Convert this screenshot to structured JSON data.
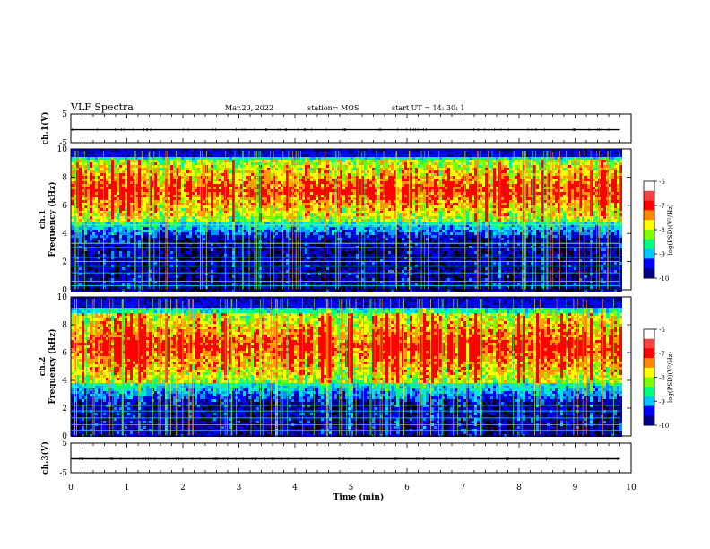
{
  "header": {
    "title": "VLF Spectra",
    "date": "Mar.20, 2022",
    "station": "station= MOS",
    "start": "start  UT =   14: 30: 1"
  },
  "chart_data": [
    {
      "type": "line",
      "panel": "ch1-waveform",
      "ylabel": "ch.1(V)",
      "ylim": [
        -5,
        5
      ],
      "yticks": [
        "5",
        "-5"
      ],
      "series": [
        {
          "values": [
            -0.5
          ]
        }
      ]
    },
    {
      "type": "heatmap",
      "panel": "ch1-spectrogram",
      "ylabel": "ch.1\nFrequency (kHz)",
      "ylabel_lines": [
        "ch.1",
        "Frequency (kHz)"
      ],
      "ylim": [
        0,
        10
      ],
      "yticks": [
        "0",
        "2",
        "4",
        "6",
        "8",
        "10"
      ],
      "band_low_khz": 5.0,
      "band_high_khz": 9.3,
      "noise_lines_khz": [
        0.3,
        0.6,
        1.2,
        1.7,
        2.0,
        2.3,
        3.0,
        3.3,
        4.6
      ],
      "colorbar": {
        "label": "log(PSD)(V²/Hz)",
        "range": [
          -10,
          -6
        ],
        "ticks": [
          "-6",
          "-7",
          "-8",
          "-9",
          "-10"
        ]
      }
    },
    {
      "type": "heatmap",
      "panel": "ch2-spectrogram",
      "ylabel": "ch.2\nFrequency (kHz)",
      "ylabel_lines": [
        "ch.2",
        "Frequency (kHz)"
      ],
      "ylim": [
        0,
        10
      ],
      "yticks": [
        "0",
        "2",
        "4",
        "6",
        "8",
        "10"
      ],
      "band_low_khz": 4.0,
      "band_high_khz": 9.0,
      "noise_lines_khz": [
        0.4,
        0.8,
        1.3,
        1.8,
        2.2
      ],
      "colorbar": {
        "label": "log(PSD)(V²/Hz)",
        "range": [
          -10,
          -6
        ],
        "ticks": [
          "-6",
          "-7",
          "-8",
          "-9",
          "-10"
        ]
      }
    },
    {
      "type": "line",
      "panel": "ch3-waveform",
      "ylabel": "ch.3(V)",
      "ylim": [
        -5,
        5
      ],
      "yticks": [
        "5",
        "-5"
      ],
      "series": [
        {
          "values": [
            -0.3
          ]
        }
      ]
    }
  ],
  "x_axis": {
    "label": "Time (min)",
    "range": [
      0,
      10
    ],
    "data_end": 9.8,
    "ticks": [
      "0",
      "1",
      "2",
      "3",
      "4",
      "5",
      "6",
      "7",
      "8",
      "9",
      "10"
    ]
  },
  "colors": {
    "background": "#ffffff",
    "axis": "#000000",
    "colormap": [
      "#000000",
      "#0000aa",
      "#0000ff",
      "#00c8ff",
      "#00ff7f",
      "#aaff00",
      "#ffff00",
      "#ff8800",
      "#ff0000",
      "#ffffff"
    ]
  }
}
